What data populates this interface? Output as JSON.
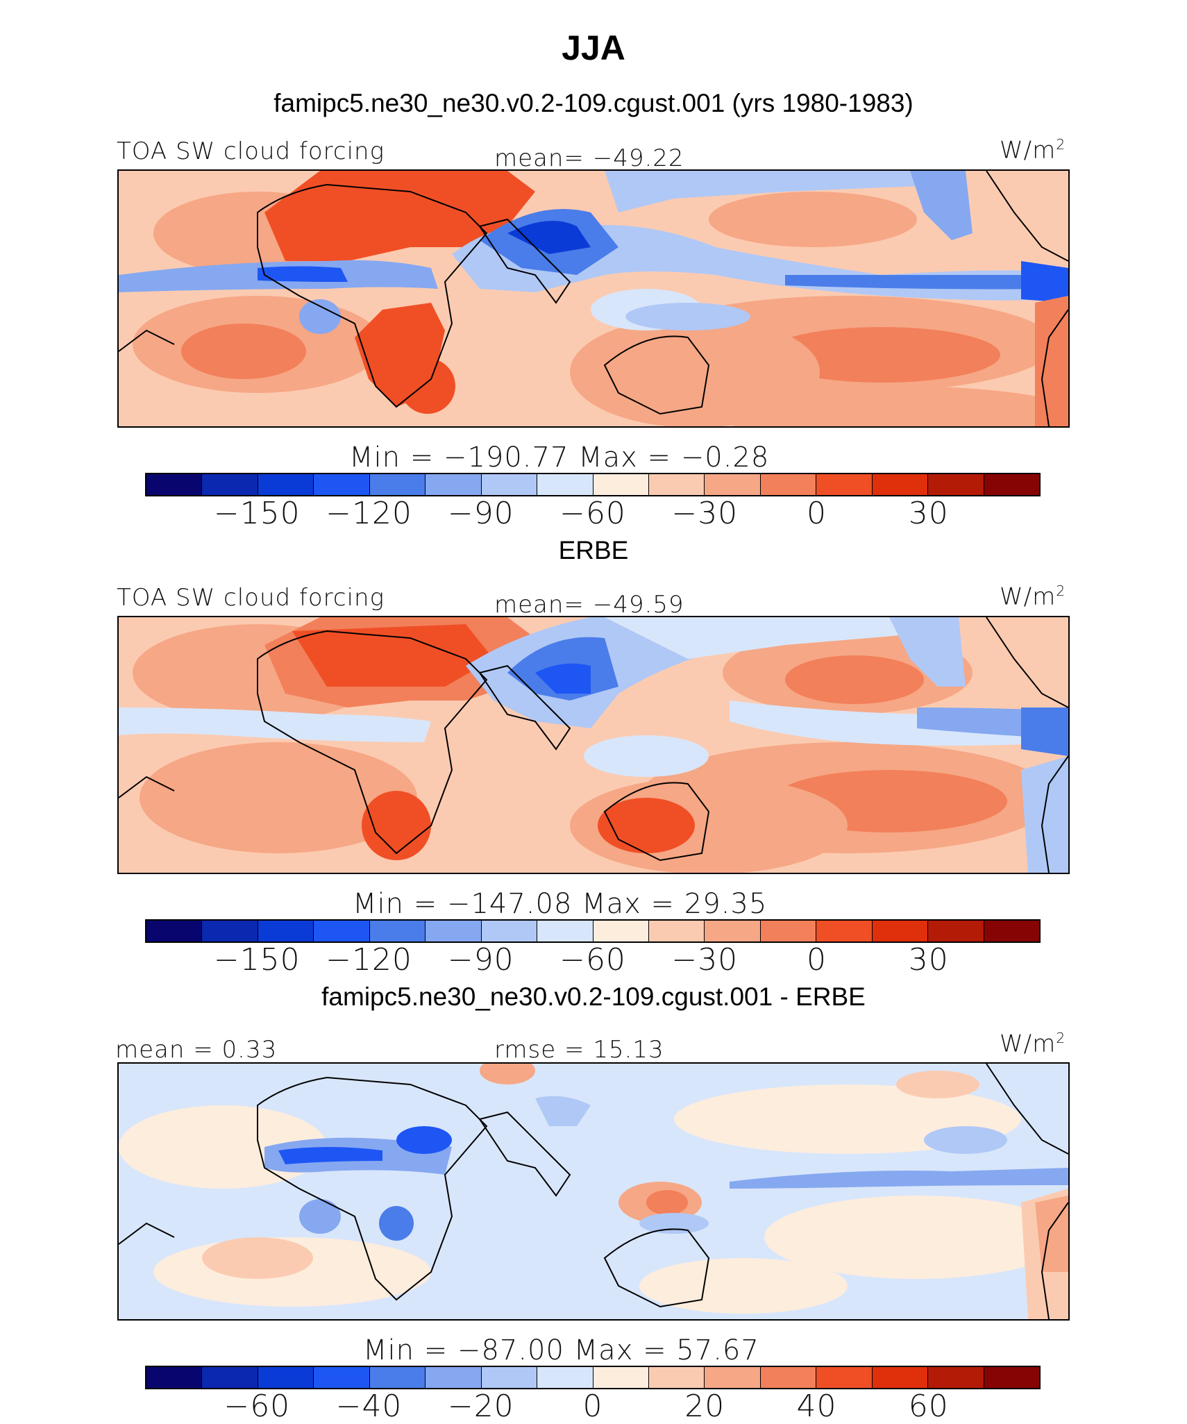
{
  "title": "JJA",
  "palette": [
    "#08066e",
    "#0a28b0",
    "#0b3bd6",
    "#1e56f4",
    "#4a7de9",
    "#86a8f0",
    "#b0c8f6",
    "#d8e6fb",
    "#fdeddd",
    "#fbcbb1",
    "#f6a785",
    "#f2805a",
    "#f04f26",
    "#df2f0b",
    "#b41b06",
    "#860504"
  ],
  "land_outline_color": "#000000",
  "panels": [
    {
      "header": "famipc5.ne30_ne30.v0.2-109.cgust.001 (yrs 1980-1983)",
      "left_label": "TOA SW cloud forcing",
      "center_label": "mean=  −49.22",
      "units": "W/m",
      "units_sup": "2",
      "minmax": "Min  =  −190.77  Max  =    −0.28",
      "colorbar_ticks": [
        "−150",
        "−120",
        "−90",
        "−60",
        "−30",
        "0",
        "30"
      ],
      "chart_data": {
        "type": "heatmap",
        "title": "TOA SW cloud forcing",
        "units": "W/m2",
        "mean": -49.22,
        "min": -190.77,
        "max": -0.28,
        "levels": [
          -165,
          -150,
          -135,
          -120,
          -105,
          -90,
          -75,
          -60,
          -45,
          -30,
          -15,
          0,
          15,
          30,
          45
        ],
        "colorbar_labels": [
          -150,
          -120,
          -90,
          -60,
          -30,
          0,
          30
        ]
      }
    },
    {
      "header": "ERBE",
      "left_label": "TOA SW cloud forcing",
      "center_label": "mean=  −49.59",
      "units": "W/m",
      "units_sup": "2",
      "minmax": "Min  =  −147.08  Max  =    29.35",
      "colorbar_ticks": [
        "−150",
        "−120",
        "−90",
        "−60",
        "−30",
        "0",
        "30"
      ],
      "chart_data": {
        "type": "heatmap",
        "title": "TOA SW cloud forcing",
        "units": "W/m2",
        "mean": -49.59,
        "min": -147.08,
        "max": 29.35,
        "levels": [
          -165,
          -150,
          -135,
          -120,
          -105,
          -90,
          -75,
          -60,
          -45,
          -30,
          -15,
          0,
          15,
          30,
          45
        ],
        "colorbar_labels": [
          -150,
          -120,
          -90,
          -60,
          -30,
          0,
          30
        ]
      }
    },
    {
      "header": "famipc5.ne30_ne30.v0.2-109.cgust.001 - ERBE",
      "left_label": "mean  =    0.33",
      "center_label": "rmse  =   15.13",
      "units": "W/m",
      "units_sup": "2",
      "minmax": "Min  =  −87.00  Max  =   57.67",
      "colorbar_ticks": [
        "−60",
        "−40",
        "−20",
        "0",
        "20",
        "40",
        "60"
      ],
      "chart_data": {
        "type": "heatmap",
        "title": "",
        "units": "W/m2",
        "mean": 0.33,
        "rmse": 15.13,
        "min": -87.0,
        "max": 57.67,
        "levels": [
          -70,
          -60,
          -50,
          -40,
          -30,
          -20,
          -10,
          0,
          10,
          20,
          30,
          40,
          50,
          60,
          70
        ],
        "colorbar_labels": [
          -60,
          -40,
          -20,
          0,
          20,
          40,
          60
        ]
      }
    }
  ]
}
